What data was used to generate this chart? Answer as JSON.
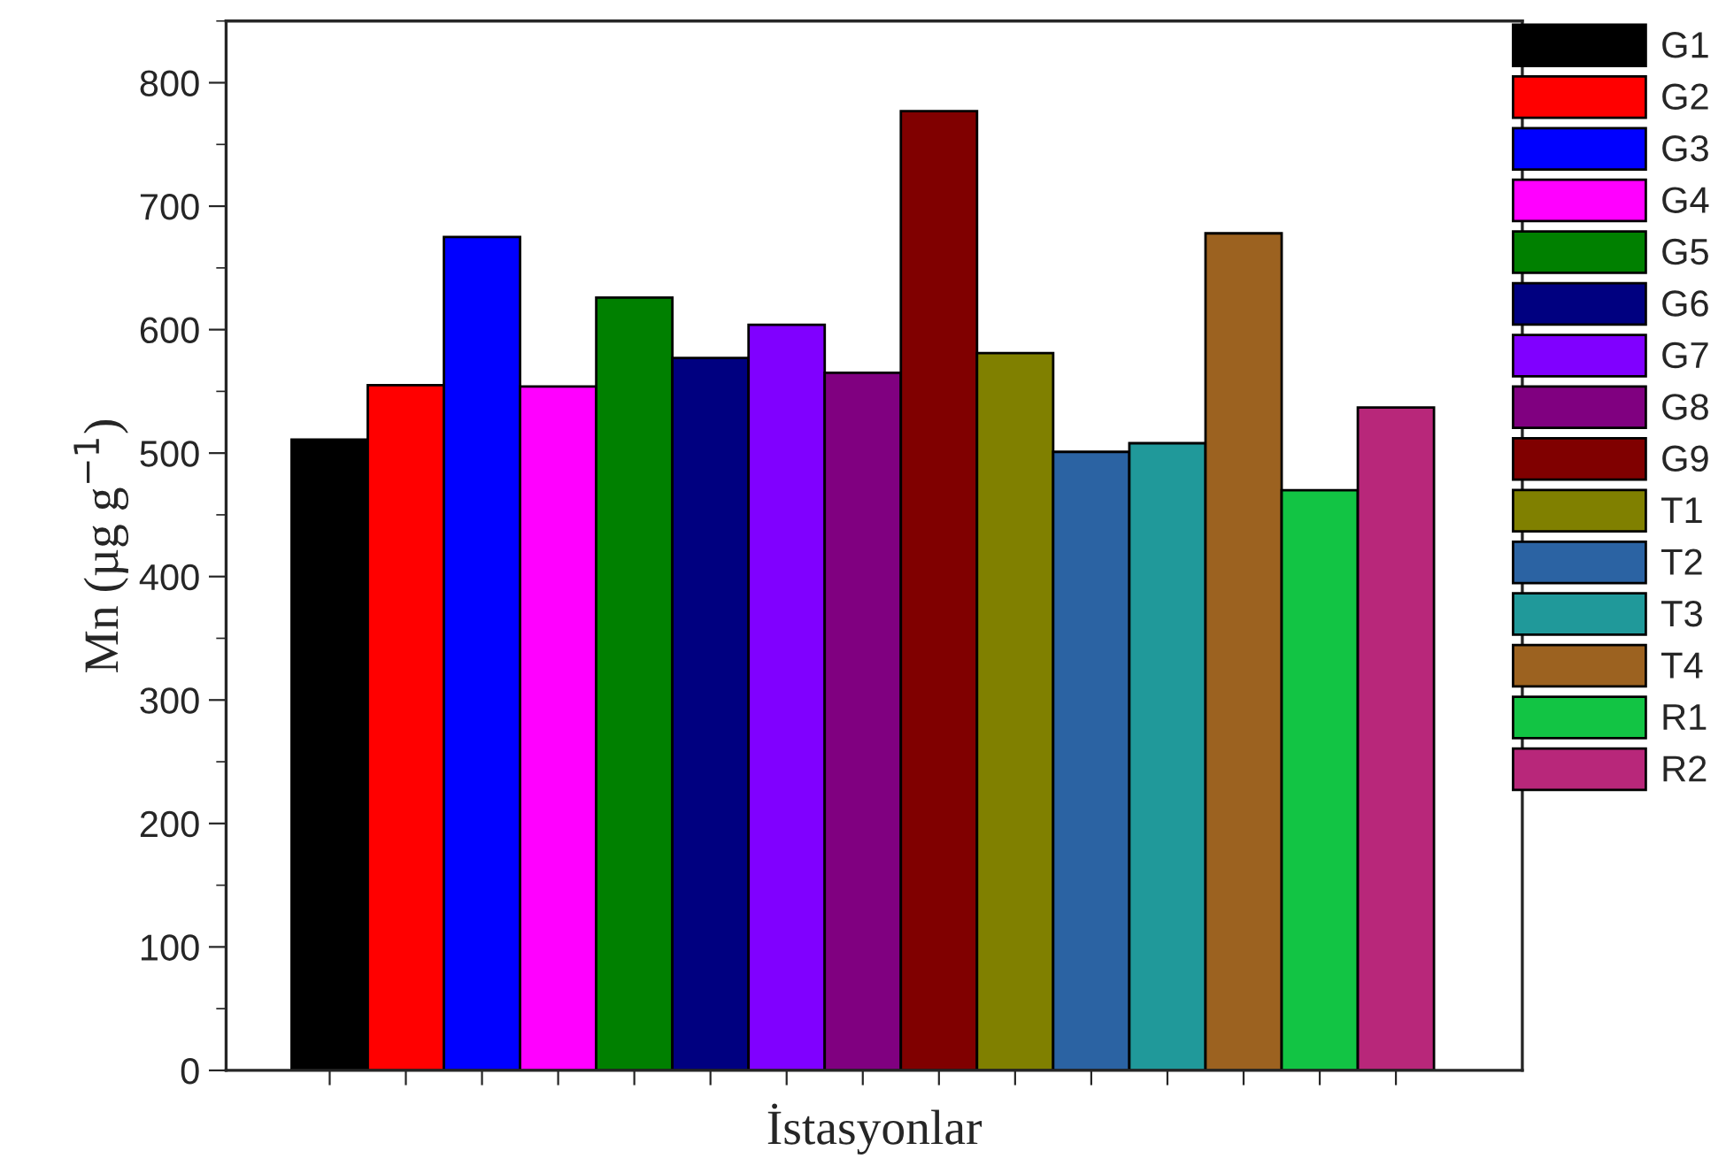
{
  "chart_data": {
    "type": "bar",
    "xlabel": "İstasyonlar",
    "ylabel": "Mn (µg g$^{−1}$)",
    "stacked": true,
    "categories": [
      null,
      null,
      null,
      null,
      null,
      null,
      null,
      null,
      null,
      null,
      null,
      null,
      null,
      null,
      null
    ],
    "series": [
      {
        "name": "G1",
        "color": "#000000",
        "values": [
          511,
          null,
          null,
          null,
          null,
          null,
          null,
          null,
          null,
          null,
          null,
          null,
          null,
          null,
          null
        ]
      },
      {
        "name": "G2",
        "color": "#ff0000",
        "values": [
          null,
          555,
          null,
          null,
          null,
          null,
          null,
          null,
          null,
          null,
          null,
          null,
          null,
          null,
          null
        ]
      },
      {
        "name": "G3",
        "color": "#0000ff",
        "values": [
          null,
          null,
          675,
          null,
          null,
          null,
          null,
          null,
          null,
          null,
          null,
          null,
          null,
          null,
          null
        ]
      },
      {
        "name": "G4",
        "color": "#ff00ff",
        "values": [
          null,
          null,
          null,
          554,
          null,
          null,
          null,
          null,
          null,
          null,
          null,
          null,
          null,
          null,
          null
        ]
      },
      {
        "name": "G5",
        "color": "#008000",
        "values": [
          null,
          null,
          null,
          null,
          626,
          null,
          null,
          null,
          null,
          null,
          null,
          null,
          null,
          null,
          null
        ]
      },
      {
        "name": "G6",
        "color": "#000080",
        "values": [
          null,
          null,
          null,
          null,
          null,
          577,
          null,
          null,
          null,
          null,
          null,
          null,
          null,
          null,
          null
        ]
      },
      {
        "name": "G7",
        "color": "#8000ff",
        "values": [
          null,
          null,
          null,
          null,
          null,
          null,
          604,
          null,
          null,
          null,
          null,
          null,
          null,
          null,
          null
        ]
      },
      {
        "name": "G8",
        "color": "#800080",
        "values": [
          null,
          null,
          null,
          null,
          null,
          null,
          null,
          565,
          null,
          null,
          null,
          null,
          null,
          null,
          null
        ]
      },
      {
        "name": "G9",
        "color": "#800000",
        "values": [
          null,
          null,
          null,
          null,
          null,
          null,
          null,
          null,
          777,
          null,
          null,
          null,
          null,
          null,
          null
        ]
      },
      {
        "name": "T1",
        "color": "#808000",
        "values": [
          null,
          null,
          null,
          null,
          null,
          null,
          null,
          null,
          null,
          581,
          null,
          null,
          null,
          null,
          null
        ]
      },
      {
        "name": "T2",
        "color": "#2b63a3",
        "values": [
          null,
          null,
          null,
          null,
          null,
          null,
          null,
          null,
          null,
          null,
          501,
          null,
          null,
          null,
          null
        ]
      },
      {
        "name": "T3",
        "color": "#20999a",
        "values": [
          null,
          null,
          null,
          null,
          null,
          null,
          null,
          null,
          null,
          null,
          null,
          508,
          null,
          null,
          null
        ]
      },
      {
        "name": "T4",
        "color": "#9c6220",
        "values": [
          null,
          null,
          null,
          null,
          null,
          null,
          null,
          null,
          null,
          null,
          null,
          null,
          678,
          null,
          null
        ]
      },
      {
        "name": "R1",
        "color": "#12c444",
        "values": [
          null,
          null,
          null,
          null,
          null,
          null,
          null,
          null,
          null,
          null,
          null,
          null,
          null,
          470,
          null
        ]
      },
      {
        "name": "R2",
        "color": "#b8277a",
        "values": [
          null,
          null,
          null,
          null,
          null,
          null,
          null,
          null,
          null,
          null,
          null,
          null,
          null,
          null,
          537
        ]
      }
    ],
    "ylim": [
      0,
      850
    ],
    "yticks": [
      0,
      100,
      200,
      300,
      400,
      500,
      600,
      700,
      800
    ],
    "grid": false,
    "legend": "right"
  }
}
